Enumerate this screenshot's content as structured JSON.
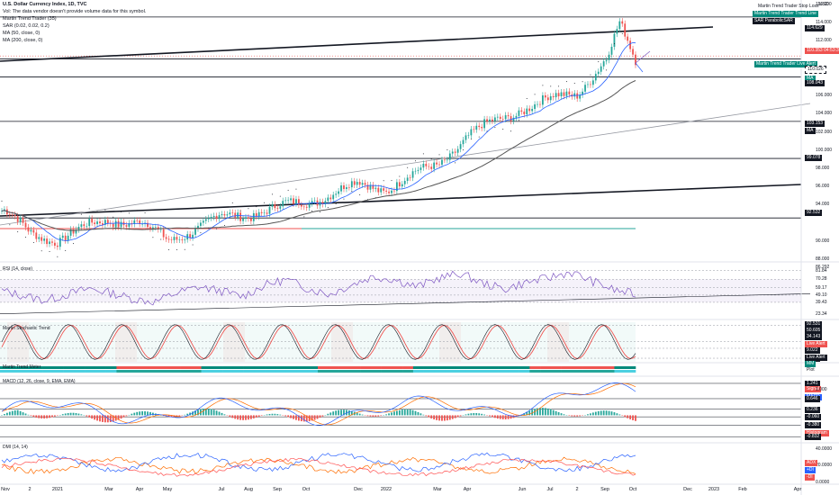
{
  "header": {
    "title": "U.S. Dollar Currency Index, 1D, TVC",
    "vol_note": "Vol: The data vendor doesn't provide volume data for this symbol.",
    "indicators": [
      "Martin Trend Trader (35)",
      "SAR (0.02, 0.02, 0.2)",
      "MA (50, close, 0)",
      "MA (200, close, 0)"
    ]
  },
  "axis_currency": "USD",
  "panes": {
    "rsi": "RSI (14, close)",
    "stoch": "Martin Stochastic Trend",
    "meter": "Martin Trend Meter",
    "macd": "MACD (12, 26, close, 9, EMA, EMA)",
    "dmi": "DMI (14, 14)"
  },
  "notes": {
    "stop_loss": "Martin Trend Trader Stop Loss",
    "trend_line": "Martin Trend Trader Trend Line",
    "sar": "SAR ParabolicSAR",
    "live_alert": "Martin Trend Trader Live Alert"
  },
  "colors": {
    "candle_up": "#26a69a",
    "candle_down": "#ef5350",
    "ma50": "#2962ff",
    "ma200": "#555555",
    "rsi": "#7e57c2",
    "macd": "#2962ff",
    "signal": "#ff6d00",
    "adx": "#ff5252",
    "plus_di": "#2962ff",
    "minus_di": "#ff6d00"
  },
  "chart_data": [
    {
      "type": "candlestick",
      "x_ticks": [
        "Nov",
        "2",
        "2021",
        "Mar",
        "Apr",
        "May",
        "Jul",
        "Aug",
        "Sep",
        "Oct",
        "Dec",
        "2022",
        "Mar",
        "Apr",
        "Jun",
        "Jul",
        "2",
        "Sep",
        "Oct",
        "Dec",
        "2023",
        "Feb",
        "Apr"
      ],
      "y_ticks": [
        116.0,
        114.0,
        112.0,
        106.0,
        104.0,
        102.0,
        100.0,
        98.0,
        96.0,
        94.0,
        90.0,
        88.0
      ],
      "ylim": [
        88.0,
        116.5
      ],
      "key_levels": [
        114.629,
        110.026,
        108.043,
        103.153,
        99.078,
        92.532
      ],
      "price_tags": [
        {
          "value": "114.629",
          "label": "",
          "color": "#131722"
        },
        {
          "value": "110.353",
          "label": "04:53:39",
          "color": "#ef5350"
        },
        {
          "value": "110.026",
          "label": "",
          "color": "#ffffff"
        },
        {
          "value": "MA",
          "label": "",
          "color": "#00897b"
        },
        {
          "value": "108.043",
          "label": "",
          "color": "#131722"
        },
        {
          "value": "103.153",
          "label": "",
          "color": "#131722"
        },
        {
          "value": "MA",
          "label": "",
          "color": "#131722"
        },
        {
          "value": "99.078",
          "label": "",
          "color": "#131722"
        },
        {
          "value": "92.532",
          "label": "",
          "color": "#131722"
        }
      ],
      "monthly_close": [
        {
          "x": "Nov",
          "y": 93.3
        },
        {
          "x": "2",
          "y": 90.8
        },
        {
          "x": "2021",
          "y": 90.2
        },
        {
          "x": "Mar",
          "y": 92.4
        },
        {
          "x": "Apr",
          "y": 92.0
        },
        {
          "x": "May",
          "y": 90.1
        },
        {
          "x": "Jul",
          "y": 92.6
        },
        {
          "x": "Aug",
          "y": 93.0
        },
        {
          "x": "Sep",
          "y": 93.6
        },
        {
          "x": "Oct",
          "y": 94.3
        },
        {
          "x": "Dec",
          "y": 96.2
        },
        {
          "x": "2022",
          "y": 95.8
        },
        {
          "x": "Mar",
          "y": 98.4
        },
        {
          "x": "Apr",
          "y": 101.5
        },
        {
          "x": "Jun",
          "y": 104.6
        },
        {
          "x": "Jul",
          "y": 105.5
        },
        {
          "x": "2",
          "y": 106.3
        },
        {
          "x": "Sep",
          "y": 109.8
        },
        {
          "x": "Oct",
          "y": 110.4
        }
      ]
    },
    {
      "type": "line",
      "name": "RSI (14, close)",
      "y_ticks": [
        86.292,
        81.84,
        70.28,
        59.17,
        49.1,
        39.43,
        23.34
      ],
      "ylim": [
        20,
        90
      ],
      "price_tags": [
        {
          "value": "86.292",
          "color": "#131722"
        },
        {
          "value": "81.84",
          "color": "#131722"
        },
        {
          "value": "70.28",
          "color": "#131722"
        },
        {
          "value": "59.17",
          "color": "#131722"
        },
        {
          "value": "49.10",
          "color": "#131722"
        },
        {
          "value": "39.43",
          "color": "#131722"
        },
        {
          "value": "23.34",
          "color": "#131722"
        }
      ],
      "values": [
        55,
        48,
        42,
        50,
        58,
        52,
        44,
        40,
        52,
        60,
        55,
        47,
        62,
        70,
        58,
        50,
        63,
        74,
        70,
        60,
        72,
        78,
        65,
        57,
        66,
        72,
        80,
        68,
        56,
        50
      ]
    },
    {
      "type": "line",
      "name": "Martin Stochastic Trend",
      "y_ticks": [
        92.531,
        50.605,
        34.143,
        9.022,
        0.0
      ],
      "ylim": [
        0,
        100
      ],
      "price_tags": [
        {
          "value": "92.531",
          "color": "#131722"
        },
        {
          "value": "50.605",
          "color": "#131722"
        },
        {
          "value": "34.143",
          "color": "#131722"
        },
        {
          "value": "Live Alert",
          "color": "#ef5350"
        },
        {
          "value": "9.022",
          "color": "#131722"
        },
        {
          "value": "0.000",
          "color": "#131722"
        },
        {
          "value": "Live Alert",
          "color": "#131722"
        },
        {
          "value": "MM",
          "color": "#00897b"
        },
        {
          "value": "Plot",
          "color": "#ffffff"
        }
      ]
    },
    {
      "type": "bar",
      "name": "MACD (12, 26, close, 9, EMA, EMA)",
      "y_ticks": [
        1.241,
        1.0,
        0.646,
        0.236,
        -0.06,
        -0.38,
        -0.832
      ],
      "ylim": [
        -1.0,
        1.45
      ],
      "price_tags": [
        {
          "value": "1.241",
          "color": "#131722"
        },
        {
          "value": "Signal",
          "color": "#ef5350"
        },
        {
          "value": "MACD",
          "color": "#2962ff"
        },
        {
          "value": "0.646",
          "color": "#131722"
        },
        {
          "value": "0.236",
          "color": "#131722"
        },
        {
          "value": "-0.060",
          "color": "#131722"
        },
        {
          "value": "Histogram",
          "color": "#ef5350"
        },
        {
          "value": "-0.380",
          "color": "#131722"
        },
        {
          "value": "-0.832",
          "color": "#131722"
        }
      ]
    },
    {
      "type": "line",
      "name": "DMI (14, 14)",
      "y_ticks": [
        40.0,
        20.0,
        0.0
      ],
      "ylim": [
        0,
        45
      ],
      "price_tags": [
        {
          "value": "ADX",
          "color": "#ef5350"
        },
        {
          "value": "+DI",
          "color": "#2962ff"
        },
        {
          "value": "-DI",
          "color": "#ef5350"
        }
      ]
    }
  ]
}
